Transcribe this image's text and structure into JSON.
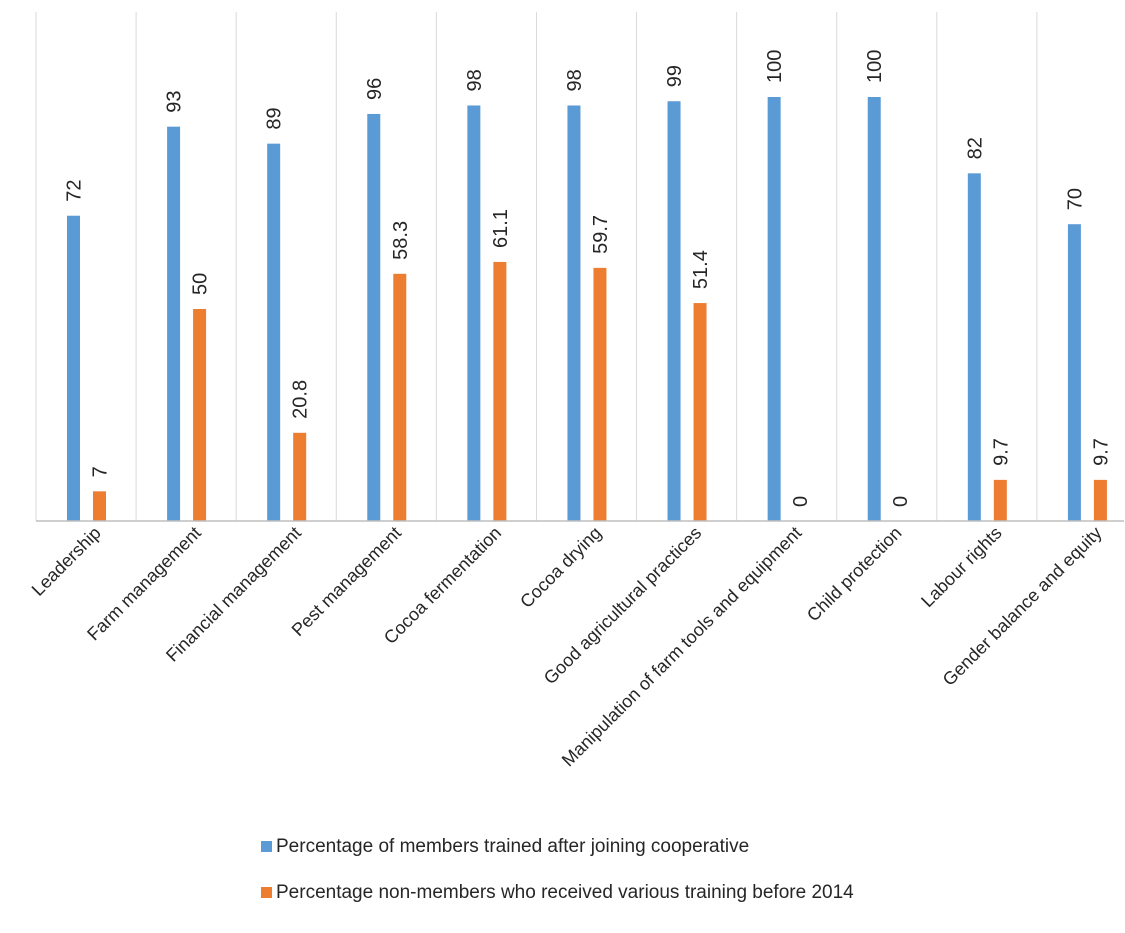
{
  "chart_data": {
    "type": "bar",
    "categories": [
      "Leadership",
      "Farm management",
      "Financial management",
      "Pest management",
      "Cocoa fermentation",
      "Cocoa drying",
      "Good agricultural practices",
      "Manipulation of farm tools and equipment",
      "Child protection",
      "Labour rights",
      "Gender balance and equity"
    ],
    "series": [
      {
        "name": "Percentage of members trained after joining cooperative",
        "color": "#5B9BD5",
        "values": [
          72,
          93,
          89,
          96,
          98,
          98,
          99,
          100,
          100,
          82,
          70
        ],
        "labels": [
          "72",
          "93",
          "89",
          "96",
          "98",
          "98",
          "99",
          "100",
          "100",
          "82",
          "70"
        ]
      },
      {
        "name": "Percentage non-members who received various training before 2014",
        "color": "#ED7D31",
        "values": [
          7,
          50,
          20.8,
          58.3,
          61.1,
          59.7,
          51.4,
          0,
          0,
          9.7,
          9.7
        ],
        "labels": [
          "7",
          "50",
          "20.8",
          "58.3",
          "61.1",
          "59.7",
          "51.4",
          "0",
          "0",
          "9.7",
          "9.7"
        ]
      }
    ],
    "ylim": [
      0,
      100
    ],
    "grid": "vertical category separators",
    "legend_position": "bottom"
  }
}
